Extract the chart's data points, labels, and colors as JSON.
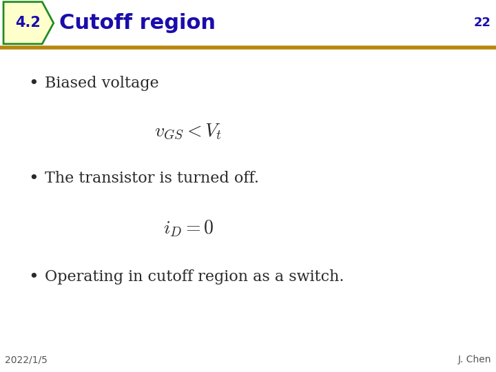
{
  "title": "Cutoff region",
  "section_num": "4.2",
  "page_num": "22",
  "footer_left": "2022/1/5",
  "footer_right": "J. Chen",
  "bullet1": "Biased voltage",
  "formula1": "$v_{GS} < V_t$",
  "bullet2": "The transistor is turned off.",
  "formula2": "$i_D = 0$",
  "bullet3": "Operating in cutoff region as a switch.",
  "bg_color": "#ffffff",
  "title_color": "#1a0dab",
  "title_font_size": 22,
  "header_bar_color": "#b8860b",
  "badge_bg": "#ffffcc",
  "badge_border": "#228B22",
  "badge_text_color": "#1a0dab",
  "body_text_color": "#2a2a2a",
  "body_font_size": 16,
  "formula_font_size": 18,
  "footer_font_size": 10,
  "page_num_font_size": 13
}
